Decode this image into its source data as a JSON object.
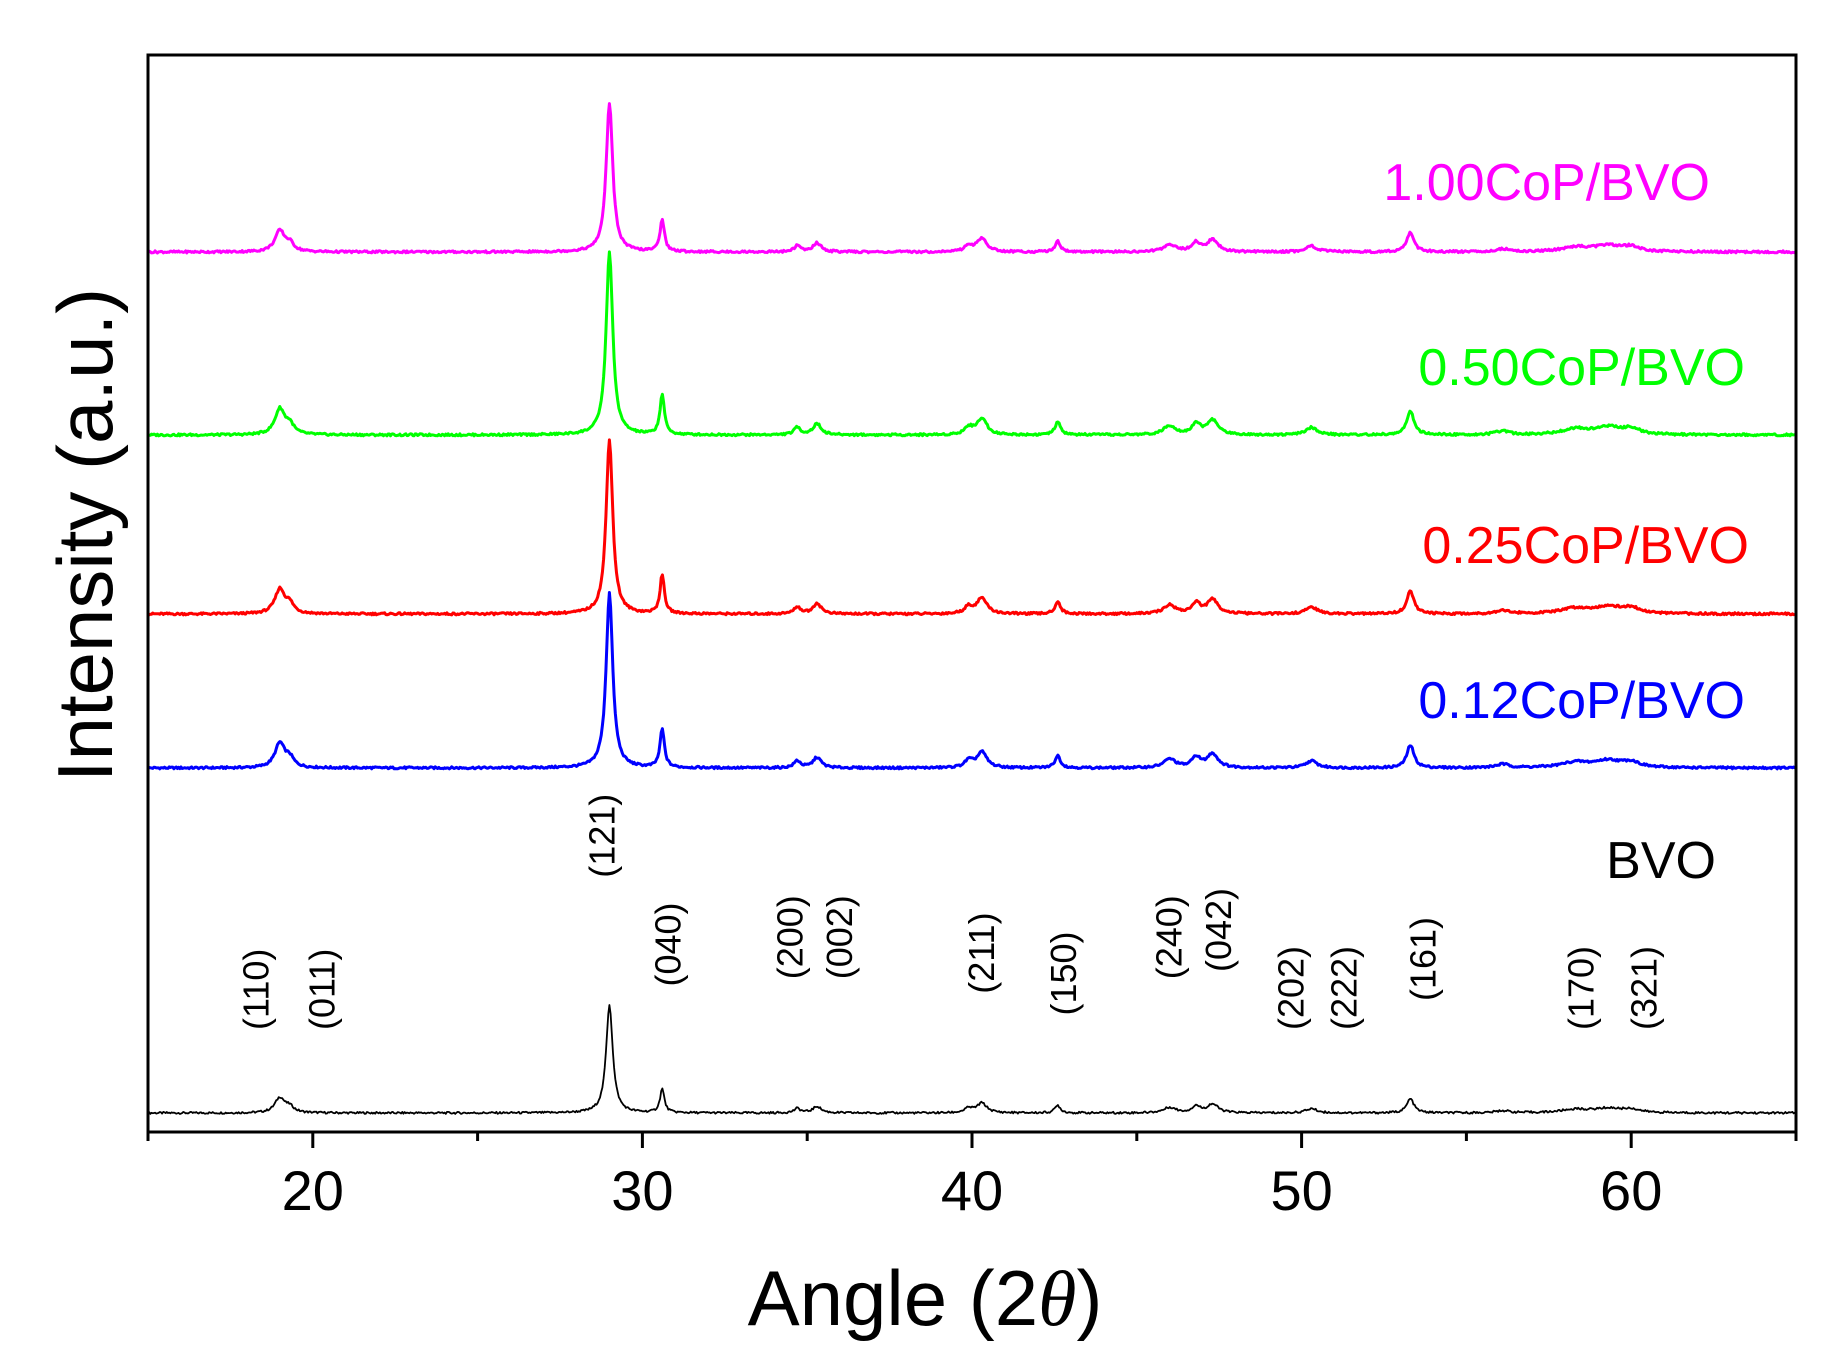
{
  "chart_data": {
    "type": "line",
    "title": "",
    "xlabel": "Angle (2",
    "xlabel_symbol": "θ",
    "xlabel_close": ")",
    "ylabel": "Intensity (a.u.)",
    "xlim": [
      15,
      65
    ],
    "xticks": [
      20,
      30,
      40,
      50,
      60
    ],
    "xticks_minor": [
      15,
      25,
      35,
      45,
      55,
      65
    ],
    "y_units": "arbitrary (vertically offset stack)",
    "grid": false,
    "series": [
      {
        "name": "BVO",
        "color": "#000000",
        "offset": 0,
        "scale": 0.62
      },
      {
        "name": "0.12CoP/BVO",
        "color": "#0000ff",
        "offset": 1,
        "scale": 1.0
      },
      {
        "name": "0.25CoP/BVO",
        "color": "#ff0000",
        "offset": 2,
        "scale": 1.0
      },
      {
        "name": "0.50CoP/BVO",
        "color": "#00ff00",
        "offset": 3,
        "scale": 1.05
      },
      {
        "name": "1.00CoP/BVO",
        "color": "#ff00ff",
        "offset": 4,
        "scale": 0.85
      }
    ],
    "peaks": [
      {
        "pos": 19.0,
        "height": 0.14,
        "width": 0.18
      },
      {
        "pos": 19.3,
        "height": 0.05,
        "width": 0.15
      },
      {
        "pos": 29.0,
        "height": 1.0,
        "width": 0.12
      },
      {
        "pos": 30.6,
        "height": 0.22,
        "width": 0.08
      },
      {
        "pos": 34.7,
        "height": 0.04,
        "width": 0.12
      },
      {
        "pos": 35.3,
        "height": 0.06,
        "width": 0.15
      },
      {
        "pos": 39.9,
        "height": 0.04,
        "width": 0.15
      },
      {
        "pos": 40.3,
        "height": 0.09,
        "width": 0.18
      },
      {
        "pos": 42.6,
        "height": 0.07,
        "width": 0.1
      },
      {
        "pos": 46.0,
        "height": 0.05,
        "width": 0.22
      },
      {
        "pos": 46.8,
        "height": 0.06,
        "width": 0.15
      },
      {
        "pos": 47.3,
        "height": 0.08,
        "width": 0.2
      },
      {
        "pos": 50.3,
        "height": 0.04,
        "width": 0.2
      },
      {
        "pos": 53.3,
        "height": 0.13,
        "width": 0.13
      },
      {
        "pos": 56.1,
        "height": 0.02,
        "width": 0.25
      },
      {
        "pos": 58.3,
        "height": 0.03,
        "width": 0.5
      },
      {
        "pos": 59.3,
        "height": 0.04,
        "width": 0.5
      },
      {
        "pos": 60.0,
        "height": 0.03,
        "width": 0.3
      }
    ],
    "annotations": [
      {
        "text": "(110)",
        "x": 18.6,
        "level": 0.4
      },
      {
        "text": "(011)",
        "x": 20.6,
        "level": 0.4
      },
      {
        "text": "(121)",
        "x": 29.1,
        "level": 1.45
      },
      {
        "text": "(040)",
        "x": 31.1,
        "level": 0.7
      },
      {
        "text": "(200)",
        "x": 34.8,
        "level": 0.75
      },
      {
        "text": "(002)",
        "x": 36.3,
        "level": 0.75
      },
      {
        "text": "(211)",
        "x": 40.6,
        "level": 0.65
      },
      {
        "text": "(150)",
        "x": 43.1,
        "level": 0.5
      },
      {
        "text": "(240)",
        "x": 46.3,
        "level": 0.75
      },
      {
        "text": "(042)",
        "x": 47.8,
        "level": 0.8
      },
      {
        "text": "(202)",
        "x": 50.0,
        "level": 0.4
      },
      {
        "text": "(222)",
        "x": 51.6,
        "level": 0.4
      },
      {
        "text": "(161)",
        "x": 54.0,
        "level": 0.6
      },
      {
        "text": "(170)",
        "x": 58.8,
        "level": 0.4
      },
      {
        "text": "(321)",
        "x": 60.7,
        "level": 0.4
      }
    ]
  }
}
